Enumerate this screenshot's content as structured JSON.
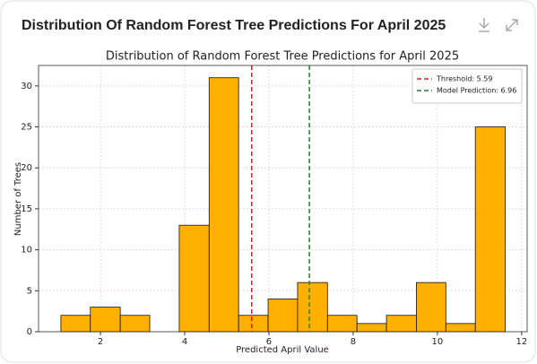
{
  "card_title": "Distribution Of Random Forest Tree Predictions For April 2025",
  "chart_data": {
    "type": "histogram",
    "title": "Distribution of Random Forest Tree Predictions for April 2025",
    "x_label": "Predicted April Value",
    "y_label": "Number of Trees",
    "bins": [
      1.06,
      1.76,
      2.47,
      3.17,
      3.87,
      4.58,
      5.28,
      5.98,
      6.68,
      7.39,
      8.09,
      8.79,
      9.5,
      10.2,
      10.9,
      11.61
    ],
    "values": [
      2,
      3,
      2,
      0,
      13,
      31,
      2,
      4,
      6,
      2,
      1,
      2,
      6,
      1,
      25
    ],
    "color": "#ffb000",
    "vlines": [
      {
        "name": "Threshold: 5.59",
        "value": 5.59,
        "color": "#e31a1c"
      },
      {
        "name": "Model Prediction: 6.96",
        "value": 6.96,
        "color": "#1a8a1a"
      }
    ],
    "xlim": [
      0.53,
      12.13
    ],
    "ylim": [
      0,
      32.5
    ],
    "xticks": [
      2,
      4,
      6,
      8,
      10,
      12
    ],
    "yticks": [
      0,
      5,
      10,
      15,
      20,
      25,
      30
    ],
    "grid": true,
    "legend": "upper-right"
  }
}
